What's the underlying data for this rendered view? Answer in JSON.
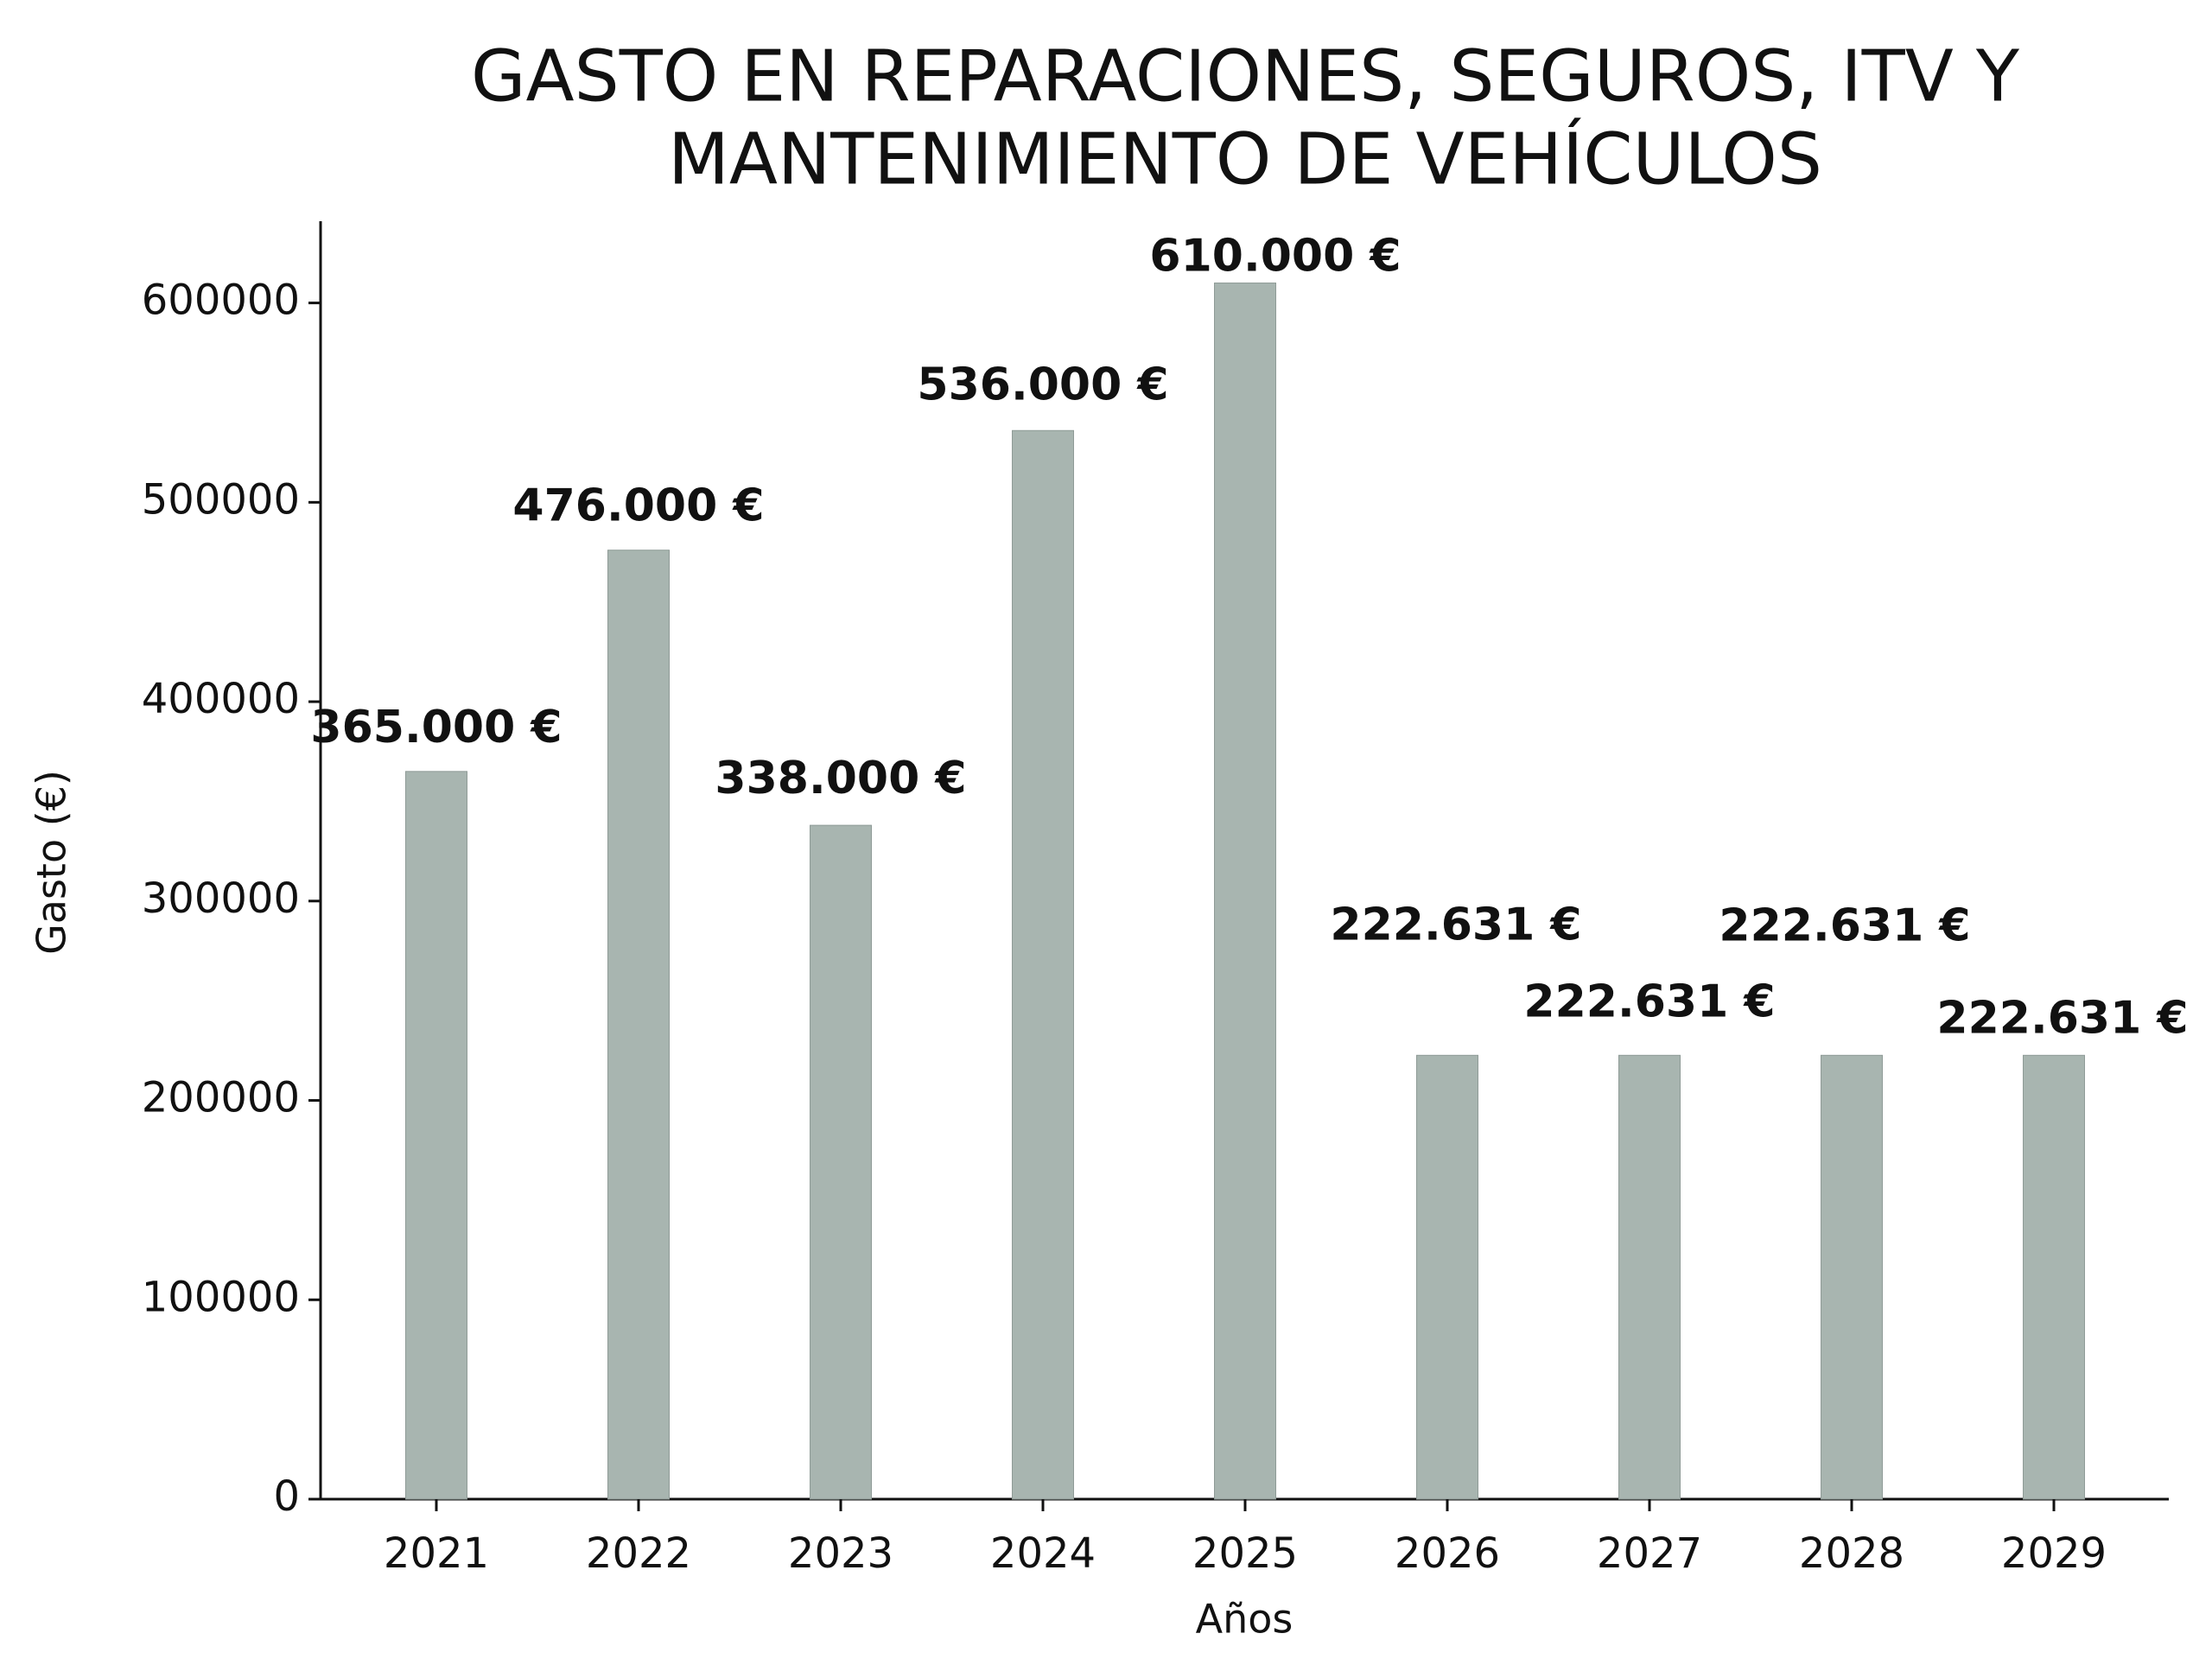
{
  "chart_data": {
    "type": "bar",
    "title": [
      "GASTO EN REPARACIONES, SEGUROS, ITV Y",
      "MANTENIMIENTO DE VEHÍCULOS"
    ],
    "x_label": "Años",
    "y_label": "Gasto (€)",
    "categories": [
      "2021",
      "2022",
      "2023",
      "2024",
      "2025",
      "2026",
      "2027",
      "2028",
      "2029"
    ],
    "values": [
      365000,
      476000,
      338000,
      536000,
      610000,
      222631,
      222631,
      222631,
      222631
    ],
    "value_labels": [
      "365.000 €",
      "476.000 €",
      "338.000 €",
      "536.000 €",
      "610.000 €",
      "222.631 €",
      "222.631 €",
      "222.631 €",
      "222.631 €"
    ],
    "color": "#a8b5b0",
    "ylim": [
      0,
      641000
    ],
    "yticks": [
      0,
      100000,
      200000,
      300000,
      400000,
      500000,
      600000
    ]
  }
}
